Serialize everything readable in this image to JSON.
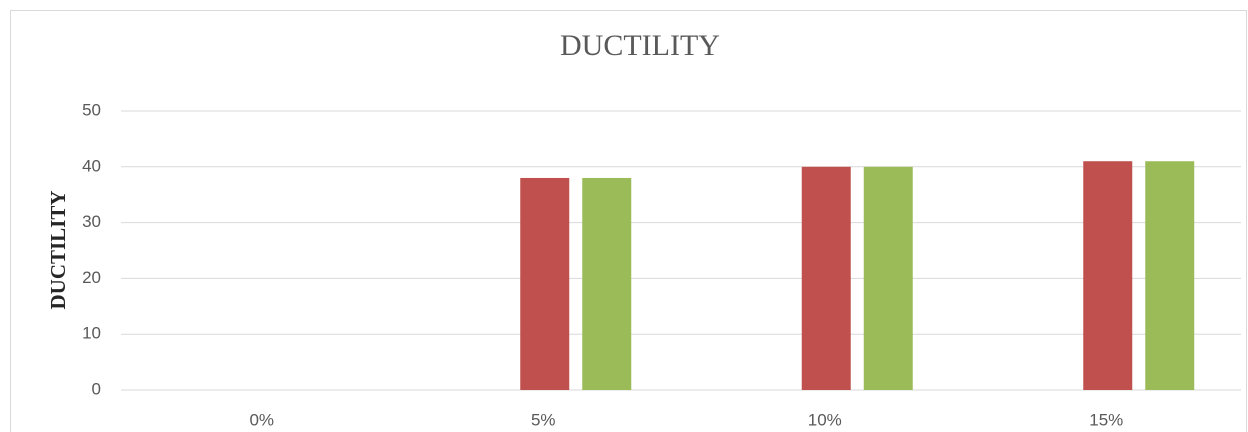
{
  "chart_data": {
    "type": "bar",
    "title": "DUCTILITY",
    "y_label": "DUCTILITY",
    "categories": [
      "0%",
      "5%",
      "10%",
      "15%"
    ],
    "series": [
      {
        "color": "#c0504d",
        "values": [
          0,
          38,
          40,
          41
        ]
      },
      {
        "color": "#9bbb59",
        "values": [
          0,
          38,
          40,
          41
        ]
      }
    ],
    "ylim": [
      0,
      50
    ],
    "yticks": [
      0,
      10,
      20,
      30,
      40,
      50
    ],
    "grid": true
  }
}
